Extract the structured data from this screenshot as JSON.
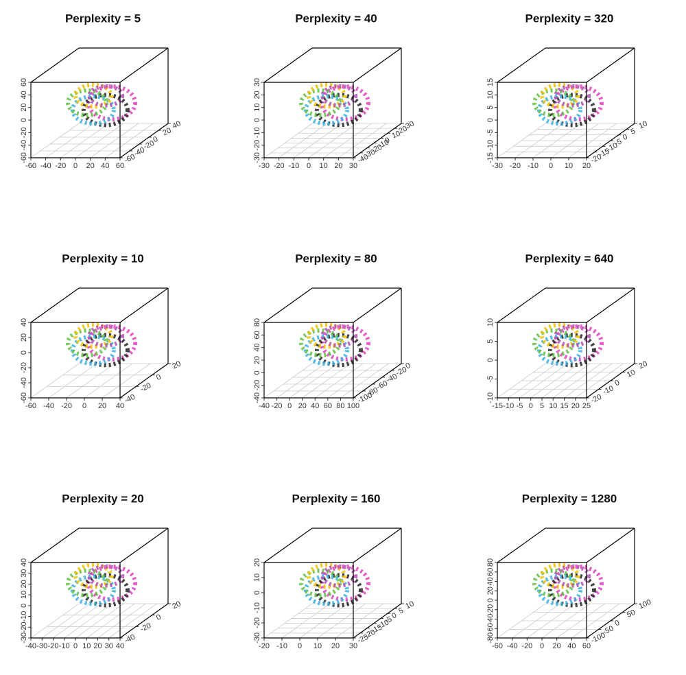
{
  "chart_data": [
    {
      "type": "scatter3d",
      "title": "Perplexity = 5",
      "xticks": [
        -60,
        -40,
        -20,
        0,
        20,
        40,
        60
      ],
      "yticks": [
        -60,
        -40,
        -20,
        0,
        20,
        40
      ],
      "zticks": [
        -60,
        -40,
        -20,
        0,
        20,
        40,
        60
      ]
    },
    {
      "type": "scatter3d",
      "title": "Perplexity = 40",
      "xticks": [
        -30,
        -20,
        -10,
        0,
        10,
        20,
        30
      ],
      "yticks": [
        -40,
        -30,
        -20,
        -10,
        0,
        10,
        20,
        30
      ],
      "zticks": [
        -30,
        -20,
        -10,
        0,
        10,
        20,
        30
      ]
    },
    {
      "type": "scatter3d",
      "title": "Perplexity = 320",
      "xticks": [
        -30,
        -20,
        -10,
        0,
        10,
        20
      ],
      "yticks": [
        -20,
        -15,
        -10,
        -5,
        0,
        5,
        10
      ],
      "zticks": [
        -15,
        -10,
        -5,
        0,
        5,
        10,
        15
      ]
    },
    {
      "type": "scatter3d",
      "title": "Perplexity = 10",
      "xticks": [
        -60,
        -40,
        -20,
        0,
        20,
        40
      ],
      "yticks": [
        -40,
        -20,
        0,
        20
      ],
      "zticks": [
        -60,
        -40,
        -20,
        0,
        20,
        40
      ]
    },
    {
      "type": "scatter3d",
      "title": "Perplexity = 80",
      "xticks": [
        -40,
        -20,
        0,
        20,
        40,
        60,
        80,
        100
      ],
      "yticks": [
        -100,
        -80,
        -60,
        -40,
        -20,
        0
      ],
      "zticks": [
        -40,
        -20,
        0,
        20,
        40,
        60,
        80
      ]
    },
    {
      "type": "scatter3d",
      "title": "Perplexity = 640",
      "xticks": [
        -15,
        -10,
        -5,
        0,
        5,
        10,
        15,
        20,
        25
      ],
      "yticks": [
        -20,
        -10,
        0,
        10,
        20
      ],
      "zticks": [
        -10,
        -5,
        0,
        5,
        10
      ]
    },
    {
      "type": "scatter3d",
      "title": "Perplexity = 20",
      "xticks": [
        -40,
        -30,
        -20,
        -10,
        0,
        10,
        20,
        30,
        40
      ],
      "yticks": [
        -40,
        -20,
        0,
        20
      ],
      "zticks": [
        -30,
        -20,
        -10,
        0,
        10,
        20,
        30,
        40
      ]
    },
    {
      "type": "scatter3d",
      "title": "Perplexity = 160",
      "xticks": [
        -20,
        -10,
        0,
        10,
        20,
        30
      ],
      "yticks": [
        -25,
        -20,
        -15,
        -10,
        -5,
        0,
        5,
        10
      ],
      "zticks": [
        -30,
        -20,
        -10,
        0,
        10,
        20
      ]
    },
    {
      "type": "scatter3d",
      "title": "Perplexity = 1280",
      "xticks": [
        -60,
        -40,
        -20,
        0,
        20,
        40,
        60
      ],
      "yticks": [
        -100,
        -50,
        0,
        50,
        100
      ],
      "zticks": [
        -80,
        -60,
        -40,
        -20,
        0,
        20,
        40,
        60,
        80
      ]
    }
  ]
}
